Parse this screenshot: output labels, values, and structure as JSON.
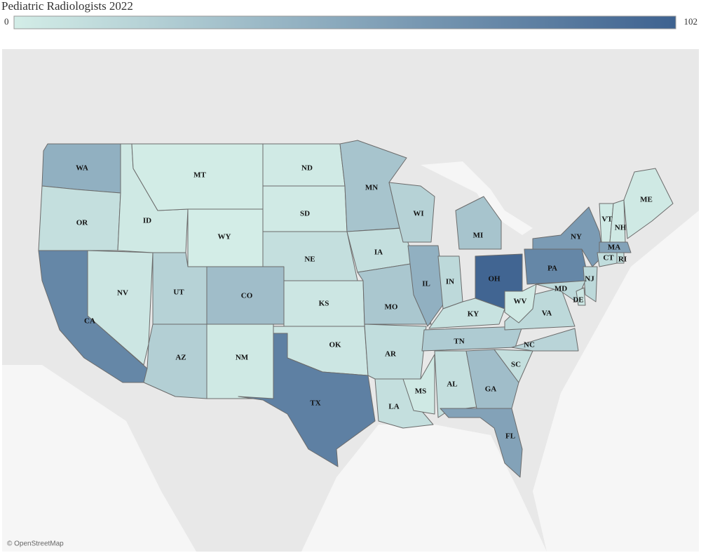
{
  "chart_data": {
    "type": "choropleth",
    "title": "Pediatric Radiologists 2022",
    "clim": [
      0,
      102
    ],
    "colors": [
      "#d3ede7",
      "#3e6290"
    ],
    "attribution": "© OpenStreetMap",
    "states": [
      {
        "label": "WA",
        "value": 45
      },
      {
        "label": "OR",
        "value": 10
      },
      {
        "label": "CA",
        "value": 75
      },
      {
        "label": "NV",
        "value": 5
      },
      {
        "label": "ID",
        "value": 3
      },
      {
        "label": "MT",
        "value": 1
      },
      {
        "label": "WY",
        "value": 0
      },
      {
        "label": "UT",
        "value": 20
      },
      {
        "label": "CO",
        "value": 35
      },
      {
        "label": "AZ",
        "value": 22
      },
      {
        "label": "NM",
        "value": 3
      },
      {
        "label": "ND",
        "value": 2
      },
      {
        "label": "SD",
        "value": 2
      },
      {
        "label": "NE",
        "value": 10
      },
      {
        "label": "KS",
        "value": 5
      },
      {
        "label": "OK",
        "value": 5
      },
      {
        "label": "TX",
        "value": 80
      },
      {
        "label": "MN",
        "value": 30
      },
      {
        "label": "IA",
        "value": 10
      },
      {
        "label": "MO",
        "value": 28
      },
      {
        "label": "AR",
        "value": 12
      },
      {
        "label": "LA",
        "value": 10
      },
      {
        "label": "WI",
        "value": 20
      },
      {
        "label": "IL",
        "value": 45
      },
      {
        "label": "MI",
        "value": 30
      },
      {
        "label": "IN",
        "value": 15
      },
      {
        "label": "OH",
        "value": 100
      },
      {
        "label": "KY",
        "value": 8
      },
      {
        "label": "TN",
        "value": 25
      },
      {
        "label": "MS",
        "value": 3
      },
      {
        "label": "AL",
        "value": 10
      },
      {
        "label": "GA",
        "value": 35
      },
      {
        "label": "FL",
        "value": 55
      },
      {
        "label": "SC",
        "value": 10
      },
      {
        "label": "NC",
        "value": 18
      },
      {
        "label": "VA",
        "value": 15
      },
      {
        "label": "WV",
        "value": 3
      },
      {
        "label": "PA",
        "value": 75
      },
      {
        "label": "NY",
        "value": 60
      },
      {
        "label": "NJ",
        "value": 15
      },
      {
        "label": "MD",
        "value": 15
      },
      {
        "label": "DE",
        "value": 5
      },
      {
        "label": "CT",
        "value": 12
      },
      {
        "label": "RI",
        "value": 8
      },
      {
        "label": "MA",
        "value": 55
      },
      {
        "label": "VT",
        "value": 2
      },
      {
        "label": "NH",
        "value": 3
      },
      {
        "label": "ME",
        "value": 3
      }
    ]
  }
}
